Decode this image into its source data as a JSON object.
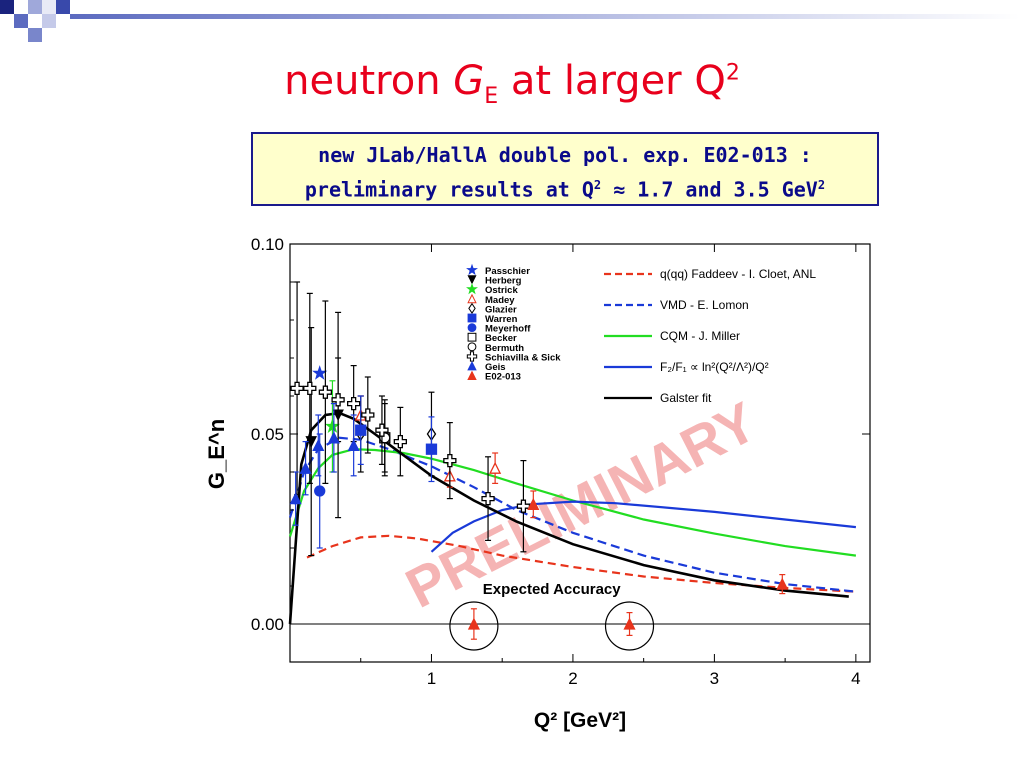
{
  "slide": {
    "title_main": "neutron ",
    "title_g": "G",
    "title_sub": "E",
    "title_mid": " at larger Q",
    "title_sup": "2",
    "note_line1": "new JLab/HallA double pol. exp. E02-013 :",
    "note_line2a": "preliminary results at Q",
    "note_line2sup": "2",
    "note_line2b": " ≈ 1.7 and 3.5 GeV",
    "note_line2sup2": "2",
    "accent": "#e8001c",
    "box_border": "#1a1a8c",
    "box_bg": "#ffffcc"
  },
  "chart_data": {
    "type": "scatter",
    "xlabel": "Q² [GeV²]",
    "ylabel": "G_E^n",
    "xlim": [
      0,
      4.1
    ],
    "ylim": [
      -0.01,
      0.1
    ],
    "x_ticks": [
      "1",
      "2",
      "3",
      "4"
    ],
    "x_tick_values": [
      1,
      2,
      3,
      4
    ],
    "y_ticks": [
      "0.00",
      "0.05",
      "0.10"
    ],
    "y_tick_values": [
      0,
      0.05,
      0.1
    ],
    "watermark": "PRELIMINARY",
    "annotation": "Expected Accuracy",
    "legend_placement": "top",
    "data_legend": [
      "Passchier",
      "Herberg",
      "Ostrick",
      "Madey",
      "Glazier",
      "Warren",
      "Meyerhoff",
      "Becker",
      "Bermuth",
      "Schiavilla & Sick",
      "Geis",
      "E02-013"
    ],
    "curves": [
      {
        "name": "q(qq) Faddeev -  I. Cloet, ANL",
        "color": "#e8341c",
        "dash": "8,5",
        "x": [
          0.12,
          0.3,
          0.5,
          0.7,
          0.9,
          1.2,
          1.5,
          2.0,
          2.5,
          3.0,
          3.5,
          4.0
        ],
        "y": [
          0.0175,
          0.0205,
          0.0228,
          0.0232,
          0.0225,
          0.0205,
          0.018,
          0.015,
          0.0125,
          0.0108,
          0.0095,
          0.0085
        ]
      },
      {
        "name": "VMD - E. Lomon",
        "color": "#1a3ad8",
        "dash": "9,5",
        "x": [
          0.0,
          0.1,
          0.2,
          0.35,
          0.5,
          0.7,
          1.0,
          1.3,
          1.6,
          2.0,
          2.5,
          3.0,
          3.5,
          4.0
        ],
        "y": [
          0.028,
          0.04,
          0.046,
          0.049,
          0.0485,
          0.046,
          0.0415,
          0.036,
          0.03,
          0.024,
          0.018,
          0.0135,
          0.0105,
          0.0085
        ]
      },
      {
        "name": "CQM - J. Miller",
        "color": "#22dd22",
        "dash": "",
        "x": [
          0.0,
          0.1,
          0.2,
          0.3,
          0.45,
          0.6,
          0.8,
          1.0,
          1.3,
          1.6,
          2.0,
          2.5,
          3.0,
          3.5,
          4.0
        ],
        "y": [
          0.023,
          0.035,
          0.041,
          0.0445,
          0.046,
          0.0458,
          0.045,
          0.0435,
          0.0405,
          0.037,
          0.0325,
          0.0275,
          0.0238,
          0.0205,
          0.018
        ]
      },
      {
        "name": "F₂/F₁ ∝ ln²(Q²/Λ²)/Q²",
        "color": "#1a3ad8",
        "dash": "",
        "x": [
          1.0,
          1.15,
          1.3,
          1.5,
          1.7,
          2.0,
          2.3,
          2.7,
          3.0,
          3.5,
          4.0
        ],
        "y": [
          0.019,
          0.024,
          0.027,
          0.03,
          0.0315,
          0.0322,
          0.0318,
          0.0305,
          0.0295,
          0.0275,
          0.0255
        ]
      },
      {
        "name": "Galster fit",
        "color": "#000000",
        "dash": "",
        "x": [
          0.0,
          0.08,
          0.15,
          0.25,
          0.35,
          0.45,
          0.6,
          0.8,
          1.0,
          1.3,
          1.6,
          2.0,
          2.5,
          3.0,
          3.5,
          3.95
        ],
        "y": [
          0.0,
          0.042,
          0.051,
          0.055,
          0.0555,
          0.054,
          0.05,
          0.0445,
          0.039,
          0.0325,
          0.027,
          0.021,
          0.0155,
          0.0115,
          0.0088,
          0.0072
        ]
      }
    ],
    "points": [
      {
        "set": "Passchier",
        "x": 0.21,
        "y": 0.066,
        "err": 0.0,
        "shape": "star",
        "color": "#1a3ad8"
      },
      {
        "set": "Herberg",
        "x": 0.15,
        "y": 0.048,
        "err": 0.03,
        "shape": "tri-down",
        "color": "#000000"
      },
      {
        "set": "Herberg",
        "x": 0.34,
        "y": 0.055,
        "err": 0.027,
        "shape": "tri-down",
        "color": "#000000"
      },
      {
        "set": "Ostrick",
        "x": 0.3,
        "y": 0.052,
        "err": 0.012,
        "shape": "star",
        "color": "#22dd22"
      },
      {
        "set": "Madey",
        "x": 0.5,
        "y": 0.055,
        "err": 0.005,
        "shape": "tri-open",
        "color": "#e8341c"
      },
      {
        "set": "Madey",
        "x": 1.13,
        "y": 0.039,
        "err": 0.003,
        "shape": "tri-open",
        "color": "#e8341c"
      },
      {
        "set": "Madey",
        "x": 1.45,
        "y": 0.041,
        "err": 0.004,
        "shape": "tri-open",
        "color": "#e8341c"
      },
      {
        "set": "Glazier",
        "x": 0.5,
        "y": 0.05,
        "err": 0.01,
        "shape": "diamond",
        "color": "#000000"
      },
      {
        "set": "Glazier",
        "x": 1.0,
        "y": 0.05,
        "err": 0.011,
        "shape": "diamond",
        "color": "#000000"
      },
      {
        "set": "Warren",
        "x": 0.5,
        "y": 0.051,
        "err": 0.009,
        "shape": "square",
        "color": "#1a3ad8"
      },
      {
        "set": "Warren",
        "x": 1.0,
        "y": 0.046,
        "err": 0.0085,
        "shape": "square",
        "color": "#1a3ad8"
      },
      {
        "set": "Meyerhoff",
        "x": 0.21,
        "y": 0.035,
        "err": 0.015,
        "shape": "circle",
        "color": "#1a3ad8"
      },
      {
        "set": "Becker",
        "x": 0.67,
        "y": 0.049,
        "err": 0.01,
        "shape": "square-open",
        "color": "#000000"
      },
      {
        "set": "Bermuth",
        "x": 0.67,
        "y": 0.049,
        "err": 0.009,
        "shape": "circle-open",
        "color": "#000000"
      },
      {
        "set": "Schiavilla & Sick",
        "x": 0.05,
        "y": 0.062,
        "err": 0.028,
        "shape": "cross",
        "color": "#000000"
      },
      {
        "set": "Schiavilla & Sick",
        "x": 0.14,
        "y": 0.062,
        "err": 0.025,
        "shape": "cross",
        "color": "#000000"
      },
      {
        "set": "Schiavilla & Sick",
        "x": 0.25,
        "y": 0.061,
        "err": 0.024,
        "shape": "cross",
        "color": "#000000"
      },
      {
        "set": "Schiavilla & Sick",
        "x": 0.34,
        "y": 0.059,
        "err": 0.011,
        "shape": "cross",
        "color": "#000000"
      },
      {
        "set": "Schiavilla & Sick",
        "x": 0.45,
        "y": 0.058,
        "err": 0.01,
        "shape": "cross",
        "color": "#000000"
      },
      {
        "set": "Schiavilla & Sick",
        "x": 0.55,
        "y": 0.055,
        "err": 0.01,
        "shape": "cross",
        "color": "#000000"
      },
      {
        "set": "Schiavilla & Sick",
        "x": 0.65,
        "y": 0.051,
        "err": 0.009,
        "shape": "cross",
        "color": "#000000"
      },
      {
        "set": "Schiavilla & Sick",
        "x": 0.78,
        "y": 0.048,
        "err": 0.009,
        "shape": "cross",
        "color": "#000000"
      },
      {
        "set": "Schiavilla & Sick",
        "x": 1.13,
        "y": 0.043,
        "err": 0.01,
        "shape": "cross",
        "color": "#000000"
      },
      {
        "set": "Schiavilla & Sick",
        "x": 1.4,
        "y": 0.033,
        "err": 0.011,
        "shape": "cross",
        "color": "#000000"
      },
      {
        "set": "Schiavilla & Sick",
        "x": 1.65,
        "y": 0.031,
        "err": 0.012,
        "shape": "cross",
        "color": "#000000"
      },
      {
        "set": "Geis",
        "x": 0.04,
        "y": 0.033,
        "err": 0.007,
        "shape": "tri",
        "color": "#1a3ad8"
      },
      {
        "set": "Geis",
        "x": 0.11,
        "y": 0.041,
        "err": 0.007,
        "shape": "tri",
        "color": "#1a3ad8"
      },
      {
        "set": "Geis",
        "x": 0.2,
        "y": 0.047,
        "err": 0.008,
        "shape": "tri",
        "color": "#1a3ad8"
      },
      {
        "set": "Geis",
        "x": 0.31,
        "y": 0.049,
        "err": 0.009,
        "shape": "tri",
        "color": "#1a3ad8"
      },
      {
        "set": "Geis",
        "x": 0.45,
        "y": 0.047,
        "err": 0.008,
        "shape": "tri",
        "color": "#1a3ad8"
      },
      {
        "set": "E02-013",
        "x": 1.72,
        "y": 0.0315,
        "err": 0.0035,
        "shape": "tri",
        "color": "#e8341c"
      },
      {
        "set": "E02-013",
        "x": 3.48,
        "y": 0.0105,
        "err": 0.0025,
        "shape": "tri",
        "color": "#e8341c"
      },
      {
        "set": "Expected Accuracy",
        "x": 1.3,
        "y": 0.0,
        "err": 0.004,
        "shape": "tri",
        "color": "#e8341c"
      },
      {
        "set": "Expected Accuracy",
        "x": 2.4,
        "y": 0.0,
        "err": 0.003,
        "shape": "tri",
        "color": "#e8341c"
      }
    ],
    "expected_accuracy_circles_x": [
      1.3,
      2.4
    ]
  }
}
